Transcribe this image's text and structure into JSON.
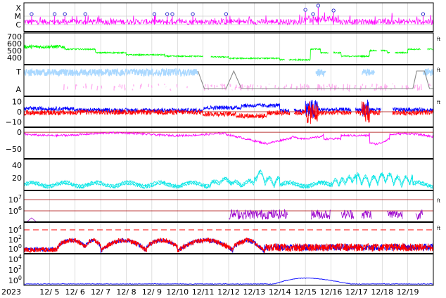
{
  "chart_data": {
    "type": "line",
    "year": "2023",
    "x_ticks": [
      "12/ 5",
      "12/ 6",
      "12/ 7",
      "12/ 8",
      "12/ 9",
      "12/10",
      "12/11",
      "12/12",
      "12/13",
      "12/14",
      "12/15",
      "12/16",
      "12/17",
      "12/18",
      "12/19"
    ],
    "right_mark": "ft",
    "colors": {
      "magenta": "#ff00ff",
      "green": "#00ff00",
      "lightblue": "#aad8ff",
      "pink": "#ffb0f0",
      "gray": "#888888",
      "blue": "#0000ff",
      "red": "#ff0000",
      "purple": "#9900cc",
      "cyan": "#00e5e5",
      "darkred": "#aa0000"
    },
    "panels": [
      {
        "id": "p1",
        "ylabels": [
          "X",
          "M",
          "C"
        ],
        "series": "magenta flare activity with event markers",
        "markers": [
          0.3,
          1.2,
          1.6,
          2.4,
          5.1,
          5.6,
          5.8,
          6.6,
          7.9,
          11.0,
          11.3,
          11.5,
          12.1,
          15.6
        ]
      },
      {
        "id": "p2",
        "yticks": [
          "700",
          "600",
          "500",
          "400"
        ],
        "ylim": [
          300,
          750
        ],
        "series": [
          {
            "name": "",
            "color": "green"
          }
        ]
      },
      {
        "id": "p3",
        "ylabels": [
          "T",
          "A"
        ],
        "series": [
          {
            "name": "",
            "color": "lightblue"
          },
          {
            "name": "",
            "color": "pink"
          },
          {
            "name": "",
            "color": "gray"
          }
        ]
      },
      {
        "id": "p4",
        "yticks": [
          "10",
          "0",
          "−10"
        ],
        "ylim": [
          -15,
          15
        ],
        "series": [
          {
            "name": "",
            "color": "blue"
          },
          {
            "name": "",
            "color": "red"
          }
        ]
      },
      {
        "id": "p5",
        "yticks": [
          "0",
          "−50"
        ],
        "ylim": [
          -80,
          15
        ],
        "series": [
          {
            "name": "",
            "color": "magenta"
          }
        ]
      },
      {
        "id": "p6",
        "yticks": [
          "40",
          "20"
        ],
        "ylim": [
          0,
          50
        ],
        "series": [
          {
            "name": "",
            "color": "cyan"
          }
        ]
      },
      {
        "id": "p7",
        "yticks": [
          "10^7",
          "10^6"
        ],
        "series": [
          {
            "name": "",
            "color": "purple"
          }
        ]
      },
      {
        "id": "p8",
        "yticks": [
          "10^4",
          "10^2",
          "10^0"
        ],
        "series": [
          {
            "name": "",
            "color": "blue"
          },
          {
            "name": "",
            "color": "red"
          }
        ]
      },
      {
        "id": "p9",
        "yticks": [
          "10^4",
          "10^2",
          "10^0"
        ],
        "series": [
          {
            "name": "",
            "color": "blue"
          }
        ]
      }
    ]
  }
}
